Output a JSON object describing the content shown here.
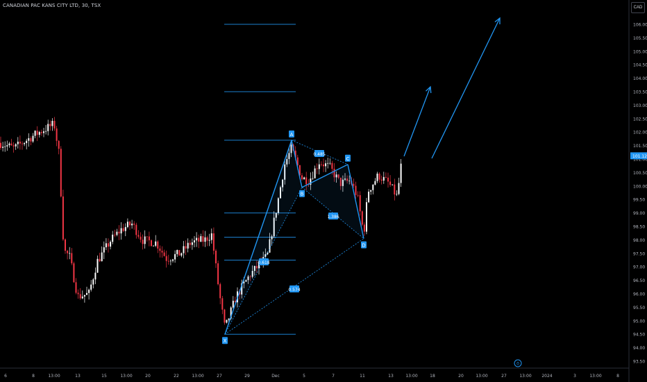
{
  "header": {
    "title": "CANADIAN PAC KANS CITY LTD, 30, TSX",
    "currency": "CAD"
  },
  "chart_data": {
    "type": "candlestick",
    "ylim": [
      93.0,
      106.5
    ],
    "y_ticks": [
      "106.00",
      "105.50",
      "105.00",
      "104.50",
      "104.00",
      "103.50",
      "103.00",
      "102.50",
      "102.00",
      "101.50",
      "101.00",
      "100.50",
      "100.00",
      "99.50",
      "99.00",
      "98.50",
      "98.00",
      "97.50",
      "97.00",
      "96.50",
      "96.00",
      "95.50",
      "95.00",
      "94.50",
      "94.00",
      "93.50"
    ],
    "x_ticks": [
      "6",
      "8",
      "13:00",
      "13",
      "15",
      "13:00",
      "20",
      "22",
      "13:00",
      "27",
      "29",
      "Dec",
      "5",
      "7",
      "11",
      "13",
      "13:00",
      "18",
      "20",
      "13:00",
      "27",
      "13:00",
      "2024",
      "3",
      "13:00",
      "8"
    ],
    "last_price": {
      "label": "101.12",
      "value": 101.12,
      "color": "#2196f3"
    },
    "fib_levels": [
      106.0,
      103.5,
      101.7,
      99.0,
      98.1,
      97.25,
      94.5
    ],
    "pattern_points": [
      {
        "label": "X",
        "value": 94.5
      },
      {
        "label": "A",
        "value": 101.7
      },
      {
        "label": "B",
        "value": 99.95
      },
      {
        "label": "C",
        "value": 100.8
      },
      {
        "label": "D",
        "value": 98.05
      }
    ],
    "ratio_labels": [
      "0.485",
      "1.386",
      "0.618",
      "0.574"
    ],
    "projection_arrows": 2,
    "colors": {
      "up": "#ffffff",
      "down": "#f23645",
      "pattern": "#2196f3",
      "background": "#000000",
      "text": "#b2b5be"
    },
    "bottom_marker": "0"
  }
}
